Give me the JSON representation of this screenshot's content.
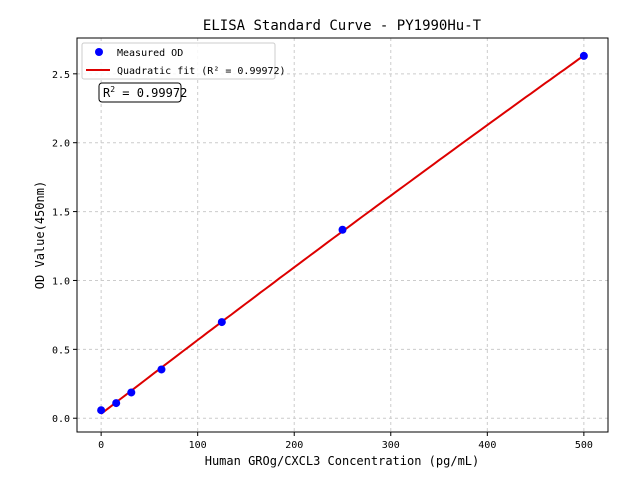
{
  "chart_data": {
    "type": "scatter",
    "title": "ELISA Standard Curve - PY1990Hu-T",
    "xlabel": "Human GROg/CXCL3 Concentration (pg/mL)",
    "ylabel": "OD Value(450nm)",
    "xlim": [
      -25,
      525
    ],
    "ylim": [
      -0.1,
      2.76
    ],
    "xticks": [
      0,
      100,
      200,
      300,
      400,
      500
    ],
    "yticks": [
      0.0,
      0.5,
      1.0,
      1.5,
      2.0,
      2.5
    ],
    "xtick_labels": [
      "0",
      "100",
      "200",
      "300",
      "400",
      "500"
    ],
    "ytick_labels": [
      "0.0",
      "0.5",
      "1.0",
      "1.5",
      "2.0",
      "2.5"
    ],
    "grid": true,
    "legend_position": "top-left",
    "series": [
      {
        "name": "Measured OD",
        "kind": "scatter",
        "color": "#0000ff",
        "x": [
          0,
          15.6,
          31.25,
          62.5,
          125,
          250,
          500
        ],
        "y": [
          0.058,
          0.11,
          0.187,
          0.354,
          0.698,
          1.368,
          2.63
        ]
      },
      {
        "name": "Quadratic fit (R² = 0.99972)",
        "kind": "line",
        "color": "#dd0000"
      }
    ],
    "annotation": {
      "prefix": "R",
      "sup": "2",
      "value": " = 0.99972"
    }
  }
}
